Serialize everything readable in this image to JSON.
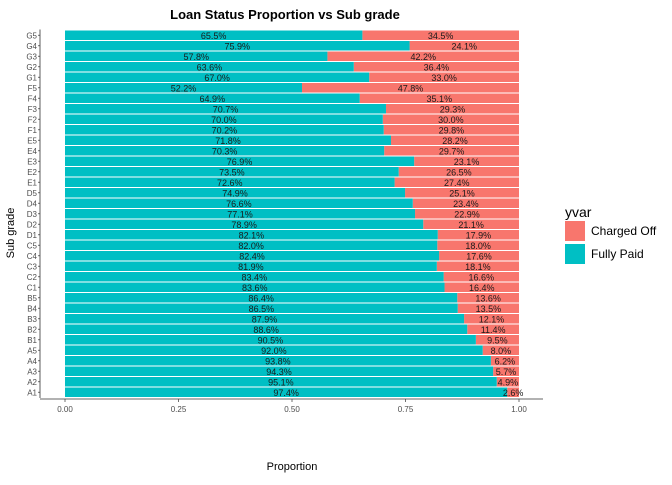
{
  "chart_data": {
    "type": "bar",
    "orientation": "horizontal",
    "stacked": true,
    "title": "Loan Status Proportion vs Sub grade",
    "xlabel": "Proportion",
    "ylabel": "Sub grade",
    "xlim": [
      0,
      1
    ],
    "x_ticks": [
      "0.00",
      "0.25",
      "0.50",
      "0.75",
      "1.00"
    ],
    "grid": false,
    "legend": {
      "title": "yvar",
      "position": "right",
      "entries": [
        {
          "name": "Charged Off",
          "color": "#F8766D"
        },
        {
          "name": "Fully Paid",
          "color": "#00BFC4"
        }
      ]
    },
    "categories": [
      "A1",
      "A2",
      "A3",
      "A4",
      "A5",
      "B1",
      "B2",
      "B3",
      "B4",
      "B5",
      "C1",
      "C2",
      "C3",
      "C4",
      "C5",
      "D1",
      "D2",
      "D3",
      "D4",
      "D5",
      "E1",
      "E2",
      "E3",
      "E4",
      "E5",
      "F1",
      "F2",
      "F3",
      "F4",
      "F5",
      "G1",
      "G2",
      "G3",
      "G4",
      "G5"
    ],
    "series": [
      {
        "name": "Fully Paid",
        "color": "#00BFC4",
        "values": [
          0.974,
          0.951,
          0.943,
          0.938,
          0.92,
          0.905,
          0.886,
          0.879,
          0.865,
          0.864,
          0.836,
          0.834,
          0.819,
          0.824,
          0.82,
          0.821,
          0.789,
          0.771,
          0.766,
          0.749,
          0.726,
          0.735,
          0.769,
          0.703,
          0.718,
          0.702,
          0.7,
          0.707,
          0.649,
          0.522,
          0.67,
          0.636,
          0.578,
          0.759,
          0.655
        ],
        "labels": [
          "97.4%",
          "95.1%",
          "94.3%",
          "93.8%",
          "92.0%",
          "90.5%",
          "88.6%",
          "87.9%",
          "86.5%",
          "86.4%",
          "83.6%",
          "83.4%",
          "81.9%",
          "82.4%",
          "82.0%",
          "82.1%",
          "78.9%",
          "77.1%",
          "76.6%",
          "74.9%",
          "72.6%",
          "73.5%",
          "76.9%",
          "70.3%",
          "71.8%",
          "70.2%",
          "70.0%",
          "70.7%",
          "64.9%",
          "52.2%",
          "67.0%",
          "63.6%",
          "57.8%",
          "75.9%",
          "65.5%"
        ]
      },
      {
        "name": "Charged Off",
        "color": "#F8766D",
        "values": [
          0.026,
          0.049,
          0.057,
          0.062,
          0.08,
          0.095,
          0.114,
          0.121,
          0.135,
          0.136,
          0.164,
          0.166,
          0.181,
          0.176,
          0.18,
          0.179,
          0.211,
          0.229,
          0.234,
          0.251,
          0.274,
          0.265,
          0.231,
          0.297,
          0.282,
          0.298,
          0.3,
          0.293,
          0.351,
          0.478,
          0.33,
          0.364,
          0.422,
          0.241,
          0.345
        ],
        "labels": [
          "2.6%",
          "4.9%",
          "5.7%",
          "6.2%",
          "8.0%",
          "9.5%",
          "11.4%",
          "12.1%",
          "13.5%",
          "13.6%",
          "16.4%",
          "16.6%",
          "18.1%",
          "17.6%",
          "18.0%",
          "17.9%",
          "21.1%",
          "22.9%",
          "23.4%",
          "25.1%",
          "27.4%",
          "26.5%",
          "23.1%",
          "29.7%",
          "28.2%",
          "29.8%",
          "30.0%",
          "29.3%",
          "35.1%",
          "47.8%",
          "33.0%",
          "36.4%",
          "42.2%",
          "24.1%",
          "34.5%"
        ]
      }
    ]
  }
}
